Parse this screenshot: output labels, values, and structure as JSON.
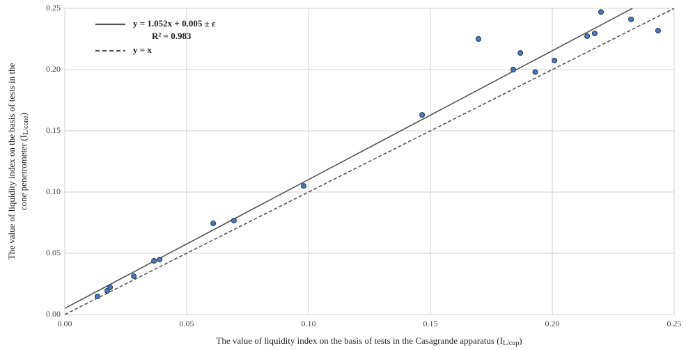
{
  "chart_data": {
    "type": "scatter",
    "x_label": {
      "text": "The value of liquidity index on the basis of tests in the Casagrande apparatus (I",
      "sub": "L/cup",
      "end": ")"
    },
    "y_label": {
      "line1": "The value of liquidity index on the basis of tests in the",
      "text": "cone penetrometer (I",
      "sub": "L/cone",
      "end": ")"
    },
    "xlim": [
      0,
      0.25
    ],
    "ylim": [
      0,
      0.25
    ],
    "xticks": [
      {
        "value": 0,
        "label": "0.00"
      },
      0.05,
      {
        "value": 0.1,
        "label": "0.10"
      },
      0.15,
      {
        "value": 0.2,
        "label": "0.20"
      },
      0.25
    ],
    "yticks": [
      {
        "value": 0,
        "label": "0.00"
      },
      0.05,
      {
        "value": 0.1,
        "label": "0.10"
      },
      0.15,
      {
        "value": 0.2,
        "label": "0.20"
      },
      0.25
    ],
    "grid": true,
    "points": {
      "color": "#4a7ab8",
      "x": [
        0.0134,
        0.0174,
        0.0186,
        0.0283,
        0.0366,
        0.0389,
        0.0609,
        0.0694,
        0.098,
        0.1466,
        0.1697,
        0.184,
        0.1869,
        0.193,
        0.2009,
        0.2143,
        0.2174,
        0.22,
        0.2323,
        0.2434
      ],
      "values": [
        0.0148,
        0.0193,
        0.0222,
        0.0313,
        0.0438,
        0.0449,
        0.0744,
        0.0767,
        0.105,
        0.163,
        0.225,
        0.2,
        0.2136,
        0.198,
        0.2074,
        0.2273,
        0.2295,
        0.247,
        0.241,
        0.2318
      ]
    },
    "lines": [
      {
        "name": "y = 1.052x + 0.005 ± ε",
        "color": "#555555",
        "dash": false,
        "x": [
          0,
          0.2329
        ],
        "values": [
          0.005,
          0.25
        ]
      },
      {
        "name": "y = x",
        "color": "#555555",
        "dash": true,
        "x": [
          0,
          0.25
        ],
        "values": [
          0,
          0.25
        ]
      }
    ],
    "annotation": "R² = 0.983"
  }
}
